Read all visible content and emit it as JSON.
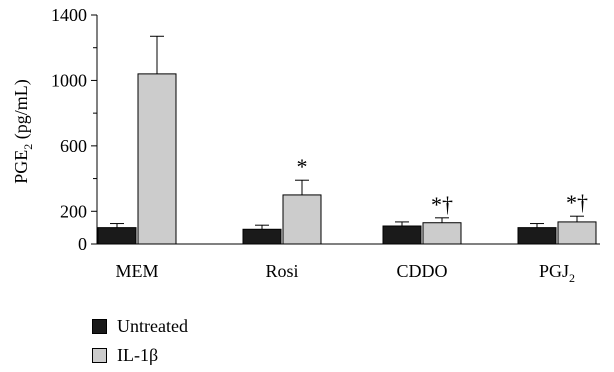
{
  "chart_data": {
    "type": "bar",
    "categories": [
      {
        "label": "MEM",
        "sub": ""
      },
      {
        "label": "Rosi",
        "sub": ""
      },
      {
        "label": "CDDO",
        "sub": ""
      },
      {
        "label": "PGJ",
        "sub": "2"
      }
    ],
    "ylabel": {
      "main": "PGE",
      "sub": "2",
      "rest": " (pg/mL)"
    },
    "ylim": [
      0,
      1400
    ],
    "yticks": [
      0,
      200,
      600,
      1000,
      1400
    ],
    "minor_ticks": [
      400,
      800,
      1200
    ],
    "series": [
      {
        "name": "Untreated",
        "color": "#1a1a1a",
        "values": [
          100,
          90,
          110,
          100
        ],
        "errors": [
          25,
          25,
          25,
          25
        ],
        "annotations": [
          "",
          "",
          "",
          ""
        ]
      },
      {
        "name": "IL-1β",
        "color": "#cccccc",
        "values": [
          1040,
          300,
          130,
          135
        ],
        "errors": [
          230,
          90,
          30,
          35
        ],
        "annotations": [
          "",
          "*",
          "*†",
          "*†"
        ]
      }
    ],
    "legend_position": "bottom-left"
  }
}
